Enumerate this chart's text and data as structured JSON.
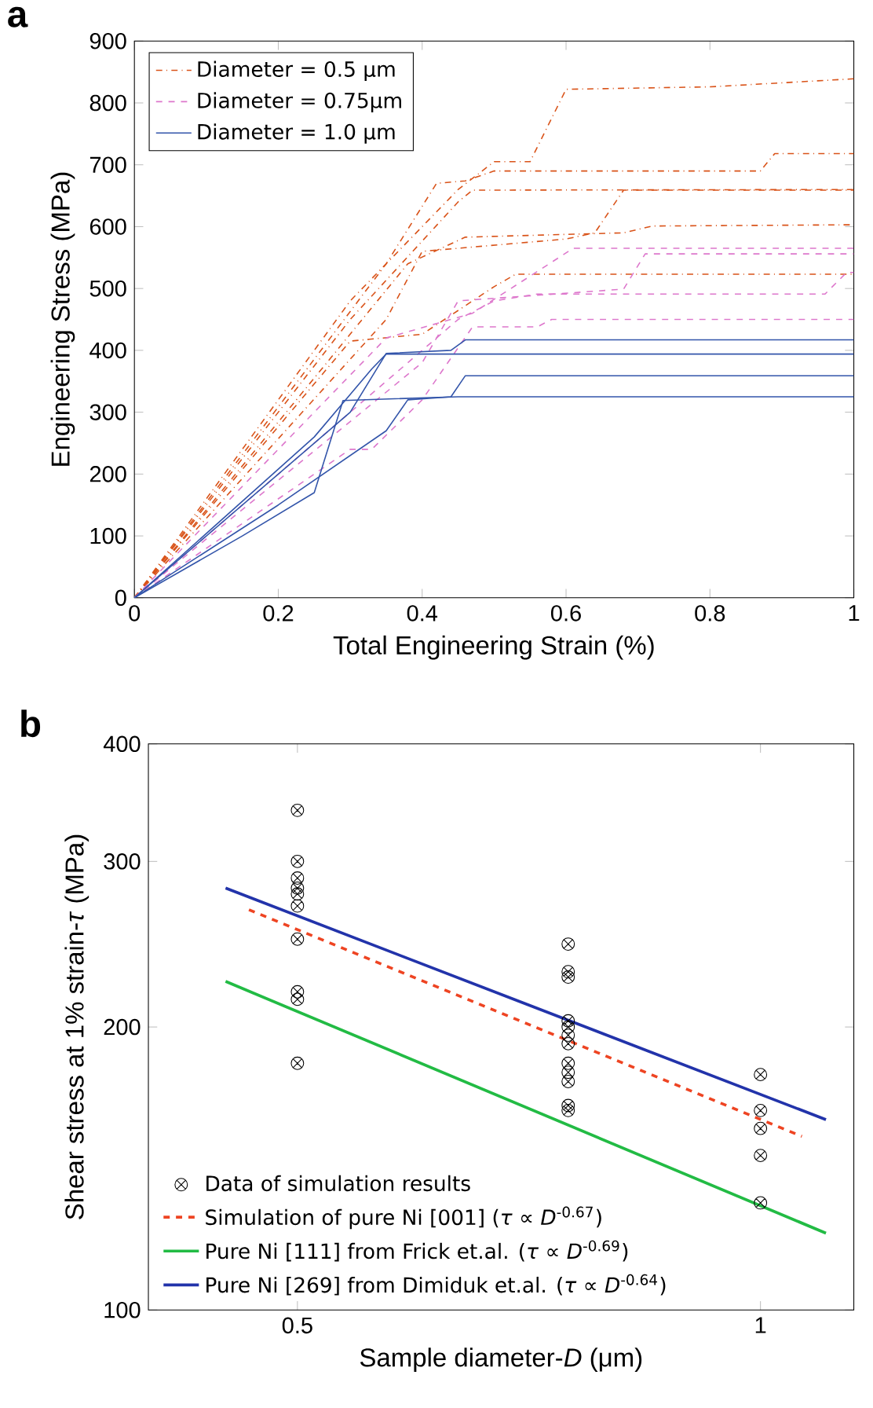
{
  "chart_data": [
    {
      "type": "line",
      "title": "a",
      "xlabel": "Total Engineering Strain (%)",
      "ylabel": "Engineering Stress (MPa)",
      "xlim": [
        0,
        1
      ],
      "ylim": [
        0,
        900
      ],
      "xticks": [
        0,
        0.2,
        0.4,
        0.6,
        0.8,
        1
      ],
      "yticks": [
        0,
        100,
        200,
        300,
        400,
        500,
        600,
        700,
        800,
        900
      ],
      "grid": false,
      "legend": "top left",
      "series": [
        {
          "name": "Diameter = 0.5 μm",
          "color": "#d95319",
          "line_style": "dashdot",
          "x": [
            0,
            0.3,
            0.45,
            0.5,
            0.55,
            0.6,
            0.8,
            1
          ],
          "values": [
            0,
            480,
            660,
            705,
            705,
            822,
            826,
            839
          ]
        },
        {
          "color": "#d95319",
          "line_style": "dashdot",
          "x": [
            0,
            0.35,
            0.42,
            0.46,
            0.5,
            0.87,
            0.89,
            1
          ],
          "values": [
            0,
            540,
            670,
            674,
            690,
            690,
            718,
            718
          ]
        },
        {
          "color": "#d95319",
          "line_style": "dashdot",
          "x": [
            0,
            0.3,
            0.45,
            0.47,
            1
          ],
          "values": [
            0,
            450,
            640,
            659,
            660
          ]
        },
        {
          "color": "#d95319",
          "line_style": "dashdot",
          "x": [
            0,
            0.35,
            0.4,
            0.6,
            0.64,
            0.68,
            1
          ],
          "values": [
            0,
            450,
            560,
            580,
            590,
            659,
            659
          ]
        },
        {
          "color": "#d95319",
          "line_style": "dashdot",
          "x": [
            0,
            0.38,
            0.46,
            0.68,
            0.72,
            1
          ],
          "values": [
            0,
            540,
            583,
            590,
            601,
            603
          ]
        },
        {
          "color": "#d95319",
          "line_style": "dashdot",
          "x": [
            0,
            0.3,
            0.4,
            0.5,
            0.53,
            1
          ],
          "values": [
            0,
            415,
            426,
            503,
            523,
            523
          ]
        },
        {
          "name": "Diameter = 0.75μm",
          "color": "#dd77cc",
          "line_style": "dashed",
          "x": [
            0,
            0.35,
            0.47,
            0.61,
            1
          ],
          "values": [
            0,
            420,
            460,
            565,
            565
          ]
        },
        {
          "color": "#dd77cc",
          "line_style": "dashed",
          "x": [
            0,
            0.4,
            0.45,
            0.68,
            0.71,
            1
          ],
          "values": [
            0,
            380,
            480,
            499,
            556,
            556
          ]
        },
        {
          "color": "#dd77cc",
          "line_style": "dashed",
          "x": [
            0,
            0.3,
            0.45,
            0.5,
            0.56,
            0.96,
            0.99,
            1
          ],
          "values": [
            0,
            300,
            450,
            480,
            491,
            491,
            526,
            526
          ]
        },
        {
          "color": "#dd77cc",
          "line_style": "dashed",
          "x": [
            0,
            0.3,
            0.33,
            0.4,
            0.47,
            0.56,
            0.58,
            1
          ],
          "values": [
            0,
            240,
            240,
            320,
            438,
            438,
            450,
            450
          ]
        },
        {
          "name": "Diameter = 1.0 μm",
          "color": "#3355aa",
          "line_style": "solid",
          "x": [
            0,
            0.3,
            0.35,
            0.44,
            0.46,
            1
          ],
          "values": [
            0,
            300,
            395,
            400,
            417,
            417
          ]
        },
        {
          "color": "#3355aa",
          "line_style": "solid",
          "x": [
            0,
            0.25,
            0.33,
            0.35,
            1
          ],
          "values": [
            0,
            260,
            370,
            394,
            394
          ]
        },
        {
          "color": "#3355aa",
          "line_style": "solid",
          "x": [
            0,
            0.2,
            0.35,
            0.38,
            0.44,
            0.46,
            1
          ],
          "values": [
            0,
            150,
            270,
            320,
            325,
            359,
            359
          ]
        },
        {
          "color": "#3355aa",
          "line_style": "solid",
          "x": [
            0,
            0.15,
            0.25,
            0.29,
            0.45,
            1
          ],
          "values": [
            0,
            100,
            170,
            319,
            325,
            325
          ]
        }
      ]
    },
    {
      "type": "scatter",
      "title": "b",
      "xlabel": "Sample diameter-*D* (μm)",
      "ylabel": "Shear stress at 1% strain-*τ* (MPa)",
      "log": "xy",
      "xlim": [
        0.4,
        1.15
      ],
      "ylim": [
        100,
        400
      ],
      "xticks": [
        0.5,
        1
      ],
      "yticks": [
        100,
        200,
        300,
        400
      ],
      "grid": false,
      "legend": "bottom left",
      "series": [
        {
          "name": "Data of simulation results",
          "color": "#000000",
          "marker": "cross",
          "x": [
            0.5,
            0.5,
            0.5,
            0.5,
            0.5,
            0.5,
            0.5,
            0.5,
            0.5,
            0.5,
            0.75,
            0.75,
            0.75,
            0.75,
            0.75,
            0.75,
            0.75,
            0.75,
            0.75,
            0.75,
            0.75,
            0.75,
            1,
            1,
            1,
            1,
            1
          ],
          "values": [
            340,
            300,
            288,
            281,
            277,
            269,
            248,
            218,
            214,
            183,
            245,
            229,
            226,
            203,
            200,
            196,
            192,
            183,
            179,
            175,
            165,
            163,
            178,
            163,
            156,
            146,
            130
          ]
        },
        {
          "name": "Simulation of pure Ni [001] (*τ* ∝ *D*$^{-0.67}$)",
          "type": "line",
          "line_style": "dashed",
          "color": "#ee4422",
          "x": [
            0.465,
            1.064
          ],
          "values": [
            266.5,
            153
          ]
        },
        {
          "name": "Pure Ni [111] from Frick et.al. (*τ* ∝ *D*$^{-0.69}$)",
          "type": "line",
          "line_style": "solid",
          "color": "#22bb44",
          "x": [
            0.449,
            1.103
          ],
          "values": [
            223.6,
            120.7
          ]
        },
        {
          "name": "Pure Ni [269] from Dimiduk et.al. (*τ* ∝ *D*$^{-0.64}$)",
          "type": "line",
          "line_style": "solid",
          "color": "#2233aa",
          "x": [
            0.449,
            1.103
          ],
          "values": [
            281,
            159.4
          ]
        }
      ]
    }
  ]
}
